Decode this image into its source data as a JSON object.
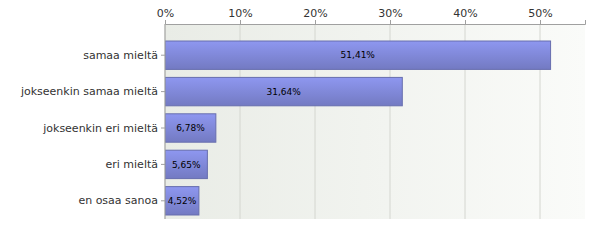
{
  "chart_data": {
    "type": "bar",
    "orientation": "horizontal",
    "categories": [
      "samaa mieltä",
      "jokseenkin samaa mieltä",
      "jokseenkin eri mieltä",
      "eri mieltä",
      "en osaa sanoa"
    ],
    "values": [
      51.41,
      31.64,
      6.78,
      5.65,
      4.52
    ],
    "value_labels": [
      "51,41%",
      "31,64%",
      "6,78%",
      "5,65%",
      "4,52%"
    ],
    "color": "#8088d8",
    "xlim": [
      0,
      56
    ],
    "xticks": [
      {
        "value": 0,
        "label": "0%"
      },
      {
        "value": 10,
        "label": "10%"
      },
      {
        "value": 20,
        "label": "20%"
      },
      {
        "value": 30,
        "label": "30%"
      },
      {
        "value": 40,
        "label": "40%"
      },
      {
        "value": 50,
        "label": "50%"
      }
    ],
    "grid": true,
    "data_labels": true
  }
}
